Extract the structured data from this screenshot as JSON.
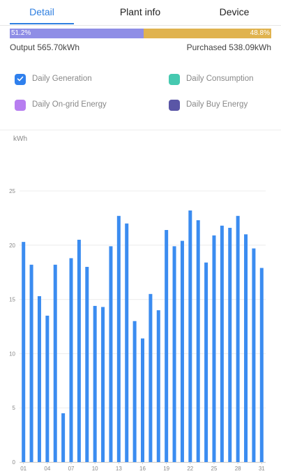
{
  "tabs": [
    {
      "label": "Detail",
      "active": true
    },
    {
      "label": "Plant info",
      "active": false
    },
    {
      "label": "Device",
      "active": false
    }
  ],
  "ratio": {
    "left_pct": "51.2%",
    "right_pct": "48.8%",
    "left_fraction": 0.512,
    "left_color": "#8f8ee6",
    "right_color": "#e0b34f"
  },
  "summary": {
    "output": "Output 565.70kWh",
    "purchased": "Purchased 538.09kWh"
  },
  "legend": [
    {
      "label": "Daily Generation",
      "color": "#2f80ed",
      "checked": true
    },
    {
      "label": "Daily Consumption",
      "color": "#46c9b0",
      "checked": false
    },
    {
      "label": "Daily On-grid Energy",
      "color": "#b77ef0",
      "checked": false
    },
    {
      "label": "Daily Buy Energy",
      "color": "#5a56a6",
      "checked": false
    }
  ],
  "chart_data": {
    "type": "bar",
    "ylabel": "kWh",
    "ylim": [
      0,
      25
    ],
    "yticks": [
      "0",
      "5",
      "10",
      "15",
      "20",
      "25"
    ],
    "grid": true,
    "bar_color": "#3b8cf0",
    "categories": [
      "01",
      "02",
      "03",
      "04",
      "05",
      "06",
      "07",
      "08",
      "09",
      "10",
      "11",
      "12",
      "13",
      "14",
      "15",
      "16",
      "17",
      "18",
      "19",
      "20",
      "21",
      "22",
      "23",
      "24",
      "25",
      "26",
      "27",
      "28",
      "29",
      "30",
      "31"
    ],
    "xtick_labels": [
      "01",
      "04",
      "07",
      "10",
      "13",
      "16",
      "19",
      "22",
      "25",
      "28",
      "31"
    ],
    "series": [
      {
        "values": [
          20.3,
          18.2,
          15.3,
          13.5,
          18.2,
          4.5,
          18.8,
          20.5,
          18.0,
          14.4,
          14.3,
          19.9,
          22.7,
          22.0,
          13.0,
          11.4,
          15.5,
          14.0,
          21.4,
          19.9,
          20.4,
          23.2,
          22.3,
          18.4,
          20.9,
          21.8,
          21.6,
          22.7,
          21.0,
          19.7,
          17.9
        ]
      }
    ]
  }
}
